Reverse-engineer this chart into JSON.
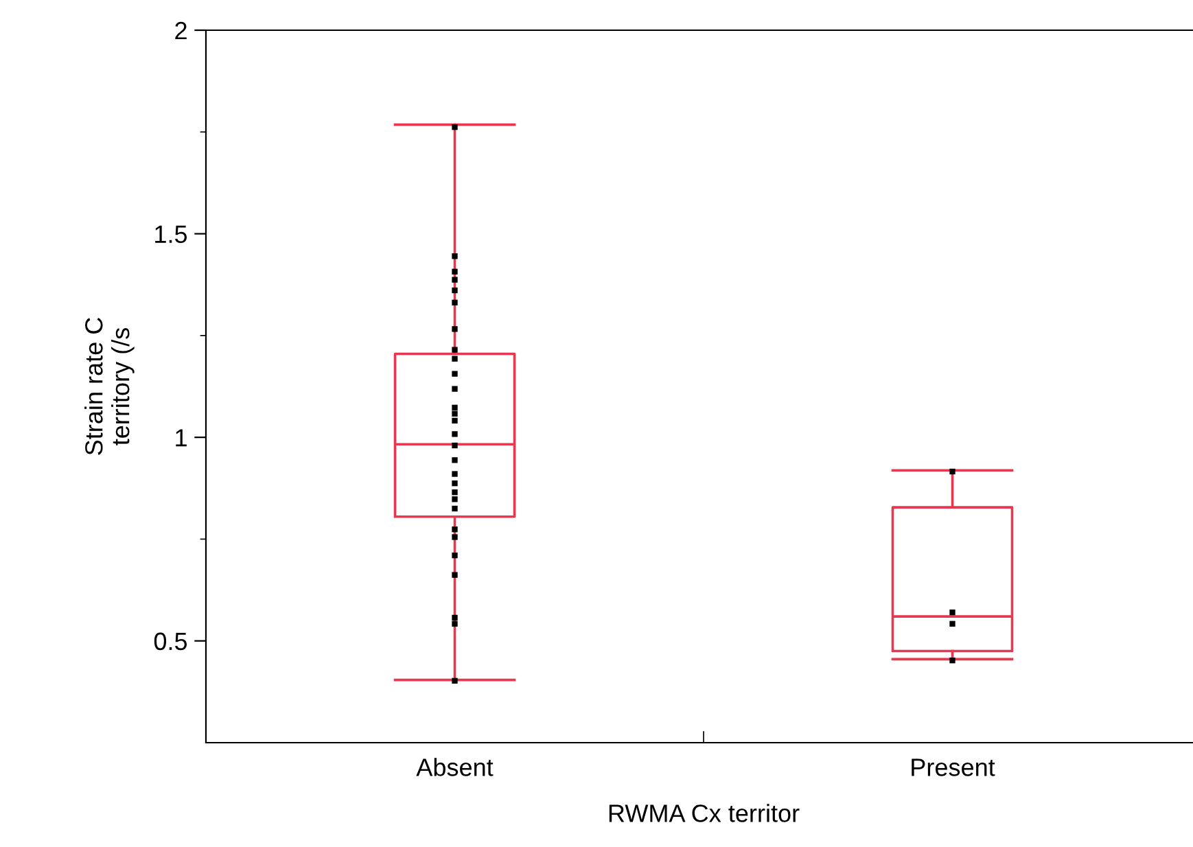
{
  "chart_data": {
    "type": "box",
    "xlabel": "RWMA Cx territor",
    "ylabel": "Strain rate C\nterritory (/s",
    "categories": [
      "Absent",
      "Present"
    ],
    "ylim": [
      0.25,
      2
    ],
    "yticks": [
      0.5,
      1,
      1.5,
      2
    ],
    "grid": false,
    "legend": false,
    "boxes": [
      {
        "low": 0.404,
        "q1": 0.805,
        "median": 0.983,
        "q3": 1.205,
        "high": 1.768
      },
      {
        "low": 0.455,
        "q1": 0.475,
        "median": 0.56,
        "q3": 0.828,
        "high": 0.919
      }
    ],
    "color": "#e8374f",
    "series": [
      {
        "type": "scatter",
        "color": "#000000",
        "marker": "square",
        "x": [
          "Absent",
          "Absent",
          "Absent",
          "Absent",
          "Absent",
          "Absent",
          "Absent",
          "Absent",
          "Absent",
          "Absent",
          "Absent",
          "Absent",
          "Absent",
          "Absent",
          "Absent",
          "Absent",
          "Absent",
          "Absent",
          "Absent",
          "Absent",
          "Absent",
          "Absent",
          "Absent",
          "Absent",
          "Absent",
          "Absent",
          "Absent",
          "Absent",
          "Absent",
          "Present",
          "Present",
          "Present",
          "Present"
        ],
        "values": [
          1.762,
          1.445,
          1.407,
          1.387,
          1.361,
          1.331,
          1.266,
          1.215,
          1.193,
          1.156,
          1.119,
          1.073,
          1.058,
          1.041,
          1.008,
          0.98,
          0.944,
          0.91,
          0.887,
          0.865,
          0.848,
          0.825,
          0.774,
          0.755,
          0.71,
          0.662,
          0.557,
          0.542,
          0.402,
          0.916,
          0.57,
          0.542,
          0.452
        ]
      }
    ]
  }
}
